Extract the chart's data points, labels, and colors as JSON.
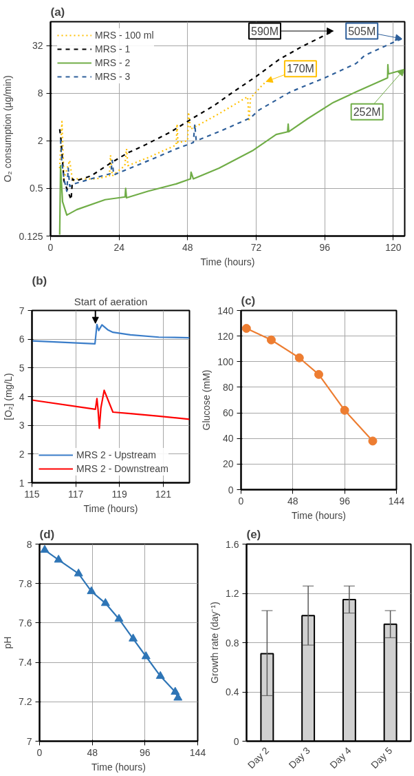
{
  "chart_data": [
    {
      "type": "line",
      "title": "(a)",
      "xlabel": "Time (hours)",
      "ylabel": "O₂ consumption (µg/min)",
      "log": "y",
      "xlim": [
        0,
        124
      ],
      "xticks": [
        0,
        24,
        48,
        72,
        96,
        120
      ],
      "ylim": [
        0.125,
        64
      ],
      "yticks": [
        0.125,
        0.5,
        2,
        8,
        32
      ],
      "grid": true,
      "legend": "top left",
      "series": [
        {
          "name": "MRS - 100 ml",
          "color": "#ffc000",
          "line_style": "dotted",
          "x": [
            3.2,
            4,
            4.7,
            6.7,
            7.7,
            9.2,
            16,
            20.6,
            21,
            21.6,
            26,
            26.6,
            27.1,
            34,
            44,
            44.3,
            44.6,
            48,
            48.3,
            49,
            54,
            59,
            69,
            69.5,
            70,
            74,
            75.5
          ],
          "values": [
            0.9,
            3.5,
            0.66,
            1.13,
            0.62,
            0.66,
            0.66,
            0.72,
            1.31,
            0.72,
            0.97,
            1.58,
            0.97,
            1.22,
            1.77,
            3.25,
            1.9,
            2.0,
            4.6,
            2.8,
            3.5,
            4.4,
            7.2,
            3.5,
            6.9,
            10,
            11.2
          ]
        },
        {
          "name": "MRS - 1",
          "color": "#000000",
          "line_style": "dashed",
          "x": [
            3.2,
            3.7,
            4.7,
            7.2,
            7.7,
            8.7,
            14.2,
            21.1,
            27.1,
            33.1,
            42.1,
            50,
            57,
            64,
            72,
            80,
            88,
            99
          ],
          "values": [
            2.8,
            2.0,
            0.62,
            0.36,
            0.66,
            0.62,
            0.72,
            1.05,
            1.41,
            1.77,
            2.59,
            3.9,
            5.5,
            8.3,
            13,
            21.3,
            31,
            48.8
          ]
        },
        {
          "name": "MRS - 2",
          "color": "#70ad47",
          "line_style": "solid",
          "x": [
            3.2,
            3.5,
            4.2,
            5.7,
            9.2,
            19.1,
            26.1,
            26.3,
            26.6,
            34.1,
            44,
            49,
            49.2,
            50,
            59,
            71,
            79,
            83,
            83.2,
            83.4,
            90,
            99,
            107,
            118,
            118.1,
            118.3,
            123.5,
            123.8
          ],
          "values": [
            0.13,
            0.97,
            0.34,
            0.23,
            0.27,
            0.36,
            0.39,
            0.5,
            0.38,
            0.46,
            0.57,
            0.66,
            0.8,
            0.66,
            0.9,
            1.52,
            2.4,
            2.6,
            3.25,
            2.6,
            3.8,
            6.1,
            8.3,
            12.5,
            18.3,
            14,
            15.8,
            16
          ]
        },
        {
          "name": "MRS - 3",
          "color": "#2e5f9a",
          "line_style": "dashed",
          "x": [
            3.5,
            3.9,
            4.7,
            5.7,
            6.2,
            6.7,
            8.2,
            14.2,
            21.1,
            21.6,
            22.1,
            30,
            36,
            44,
            50,
            50.5,
            51,
            60,
            70,
            73,
            84,
            96,
            107,
            110,
            120,
            123
          ],
          "values": [
            2.06,
            1.13,
            0.66,
            0.46,
            0.9,
            0.53,
            0.57,
            0.66,
            0.77,
            1.13,
            0.74,
            0.97,
            1.19,
            1.58,
            1.9,
            3.25,
            2.0,
            2.7,
            3.9,
            4.9,
            8.3,
            12.5,
            19,
            24,
            35,
            39
          ]
        }
      ],
      "annotations": [
        {
          "text": "590M",
          "x": 99,
          "y": 48.8
        },
        {
          "text": "505M",
          "x": 123,
          "y": 39
        },
        {
          "text": "170M",
          "x": 75.5,
          "y": 11.2
        },
        {
          "text": "252M",
          "x": 123.8,
          "y": 16
        }
      ]
    },
    {
      "type": "line",
      "title": "(b)",
      "xlabel": "Time (hours)",
      "ylabel": "[O₂] (mg/L)",
      "xlim": [
        115,
        122.2
      ],
      "xticks": [
        115,
        117,
        119,
        121
      ],
      "ylim": [
        1,
        7
      ],
      "yticks": [
        1,
        2,
        3,
        4,
        5,
        6,
        7
      ],
      "grid": true,
      "legend": "bottom left",
      "series": [
        {
          "name": "MRS 2 - Upstream",
          "color": "#3a7dc9",
          "x": [
            115,
            117.88,
            117.97,
            118.05,
            118.2,
            118.46,
            118.7,
            119.5,
            120.8,
            122.2
          ],
          "values": [
            5.94,
            5.84,
            6.51,
            6.3,
            6.5,
            6.33,
            6.24,
            6.15,
            6.07,
            6.05
          ]
        },
        {
          "name": "MRS 2 - Downstream",
          "color": "#ff0000",
          "x": [
            115,
            117.9,
            117.97,
            118.02,
            118.08,
            118.15,
            118.3,
            118.7,
            119.5,
            120.8,
            122.2
          ],
          "values": [
            3.88,
            3.56,
            3.93,
            3.56,
            2.9,
            3.6,
            4.22,
            3.46,
            3.41,
            3.32,
            3.21
          ]
        }
      ],
      "annotations": [
        {
          "text": "Start of aeration",
          "x": 117.9,
          "y": 6.55
        }
      ]
    },
    {
      "type": "line",
      "title": "(c)",
      "xlabel": "Time (hours)",
      "ylabel": "Glucose (mM)",
      "xlim": [
        0,
        144
      ],
      "xticks": [
        0,
        48,
        96,
        144
      ],
      "ylim": [
        0,
        140
      ],
      "yticks": [
        0,
        20,
        40,
        60,
        80,
        100,
        120,
        140
      ],
      "grid": true,
      "marker": "circle",
      "series": [
        {
          "color": "#ed7d31",
          "x": [
            5,
            28,
            54,
            72,
            96,
            122
          ],
          "values": [
            126,
            117,
            103,
            90,
            62,
            38
          ]
        }
      ]
    },
    {
      "type": "line",
      "title": "(d)",
      "xlabel": "Time (hours)",
      "ylabel": "pH",
      "xlim": [
        0,
        144
      ],
      "xticks": [
        0,
        48,
        96,
        144
      ],
      "ylim": [
        7,
        8
      ],
      "yticks": [
        7,
        7.2,
        7.4,
        7.6,
        7.8,
        8
      ],
      "grid": true,
      "marker": "triangle",
      "series": [
        {
          "color": "#2e75b6",
          "x": [
            4.7,
            17.3,
            35.5,
            47.2,
            60,
            72.3,
            85.2,
            96.9,
            110,
            123.5,
            126
          ],
          "values": [
            7.97,
            7.92,
            7.85,
            7.76,
            7.7,
            7.62,
            7.52,
            7.43,
            7.33,
            7.25,
            7.22
          ]
        }
      ]
    },
    {
      "type": "bar",
      "title": "(e)",
      "ylabel": "Growth rate (day⁻¹)",
      "categories": [
        "Day 2",
        "Day 3",
        "Day 4",
        "Day 5"
      ],
      "values": [
        0.71,
        1.02,
        1.15,
        0.95
      ],
      "errors": [
        [
          0.37,
          1.06
        ],
        [
          0.78,
          1.26
        ],
        [
          1.04,
          1.26
        ],
        [
          0.84,
          1.06
        ]
      ],
      "color": "#d0d0d0",
      "ylim": [
        0,
        1.6
      ],
      "yticks": [
        0,
        0.4,
        0.8,
        1.2,
        1.6
      ],
      "grid": "y"
    }
  ]
}
